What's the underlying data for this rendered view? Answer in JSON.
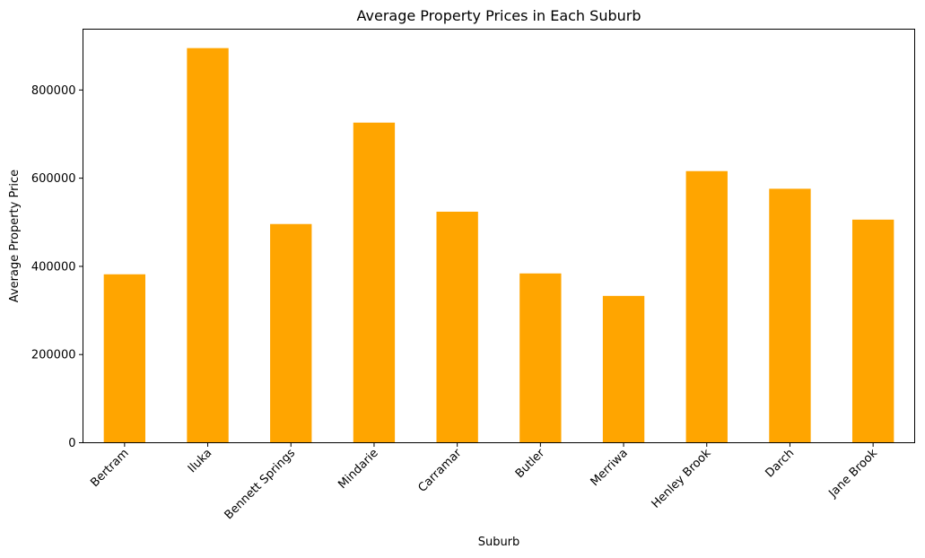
{
  "chart_data": {
    "type": "bar",
    "title": "Average Property Prices in Each Suburb",
    "xlabel": "Suburb",
    "ylabel": "Average Property Price",
    "categories": [
      "Bertram",
      "Iluka",
      "Bennett Springs",
      "Mindarie",
      "Carramar",
      "Butler",
      "Merriwa",
      "Henley Brook",
      "Darch",
      "Jane Brook"
    ],
    "values": [
      382000,
      895000,
      496000,
      726000,
      524000,
      384000,
      333000,
      616000,
      576000,
      506000
    ],
    "ylim": [
      0,
      938000
    ],
    "yticks": [
      0,
      200000,
      400000,
      600000,
      800000
    ],
    "ytick_labels": [
      "0",
      "200000",
      "400000",
      "600000",
      "800000"
    ],
    "bar_color": "#FFA500",
    "grid": false,
    "legend": "none"
  }
}
